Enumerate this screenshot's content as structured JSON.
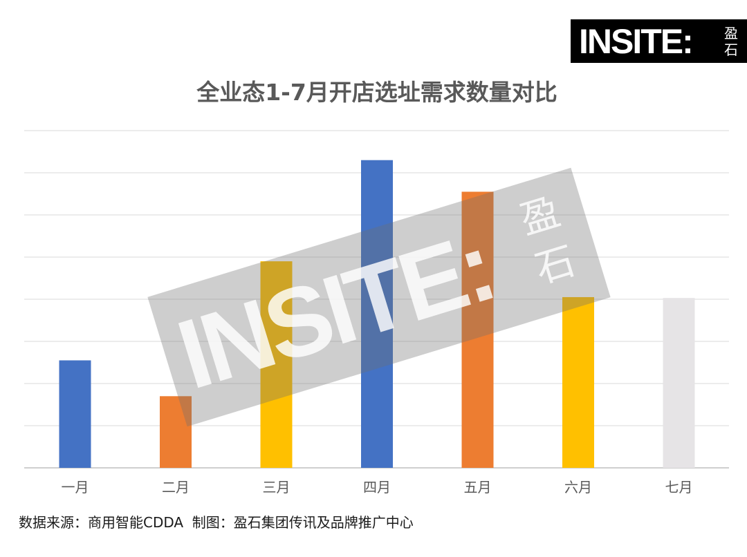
{
  "logo": {
    "wordmark": "INSITE:",
    "cn_line1": "盈",
    "cn_line2": "石"
  },
  "chart_data": {
    "type": "bar",
    "title": "全业态1-7月开店选址需求数量对比",
    "categories": [
      "一月",
      "二月",
      "三月",
      "四月",
      "五月",
      "六月",
      "七月"
    ],
    "values": [
      2.55,
      1.7,
      4.9,
      7.3,
      6.55,
      4.05,
      4.03
    ],
    "bar_colors": [
      "#4472c4",
      "#ed7d31",
      "#ffc000",
      "#4472c4",
      "#ed7d31",
      "#ffc000",
      "#e6e4e6"
    ],
    "ylim": [
      0,
      8
    ],
    "grid": true,
    "y_tick_labels_shown": false
  },
  "source_note": "数据来源：商用智能CDDA  制图：盈石集团传讯及品牌推广中心",
  "watermark": {
    "wordmark": "INSITE:",
    "cn_line1": "盈",
    "cn_line2": "石"
  }
}
